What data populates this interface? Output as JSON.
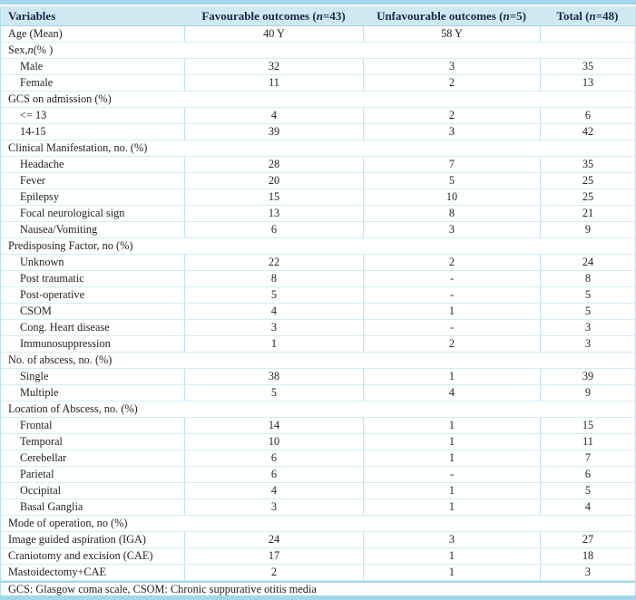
{
  "table": {
    "title_semantic": "Patient variables by outcome",
    "columns": [
      {
        "parts": [
          {
            "t": "Variables"
          }
        ]
      },
      {
        "parts": [
          {
            "t": "Favourable outcomes ("
          },
          {
            "t": "n",
            "i": true
          },
          {
            "t": "=43)"
          }
        ]
      },
      {
        "parts": [
          {
            "t": "Unfavourable outcomes ("
          },
          {
            "t": "n",
            "i": true
          },
          {
            "t": "=5)"
          }
        ]
      },
      {
        "parts": [
          {
            "t": "Total ("
          },
          {
            "t": "n",
            "i": true
          },
          {
            "t": "=48)"
          }
        ]
      }
    ],
    "rows": [
      {
        "type": "data",
        "indent": false,
        "label": [
          {
            "t": "Age (Mean)"
          }
        ],
        "values": [
          "40 Y",
          "58 Y",
          ""
        ]
      },
      {
        "type": "section",
        "label": [
          {
            "t": "Sex, "
          },
          {
            "t": "n",
            "i": true
          },
          {
            "t": " (% )"
          }
        ]
      },
      {
        "type": "data",
        "indent": true,
        "label": [
          {
            "t": "Male"
          }
        ],
        "values": [
          "32",
          "3",
          "35"
        ]
      },
      {
        "type": "data",
        "indent": true,
        "label": [
          {
            "t": "Female"
          }
        ],
        "values": [
          "11",
          "2",
          "13"
        ]
      },
      {
        "type": "section",
        "label": [
          {
            "t": "GCS on admission (%)"
          }
        ]
      },
      {
        "type": "data",
        "indent": true,
        "label": [
          {
            "t": "<= 13"
          }
        ],
        "values": [
          "4",
          "2",
          "6"
        ]
      },
      {
        "type": "data",
        "indent": true,
        "label": [
          {
            "t": "14-15"
          }
        ],
        "values": [
          "39",
          "3",
          "42"
        ]
      },
      {
        "type": "section",
        "label": [
          {
            "t": "Clinical Manifestation, no. (%)"
          }
        ]
      },
      {
        "type": "data",
        "indent": true,
        "label": [
          {
            "t": "Headache"
          }
        ],
        "values": [
          "28",
          "7",
          "35"
        ]
      },
      {
        "type": "data",
        "indent": true,
        "label": [
          {
            "t": "Fever"
          }
        ],
        "values": [
          "20",
          "5",
          "25"
        ]
      },
      {
        "type": "data",
        "indent": true,
        "label": [
          {
            "t": "Epilepsy"
          }
        ],
        "values": [
          "15",
          "10",
          "25"
        ]
      },
      {
        "type": "data",
        "indent": true,
        "label": [
          {
            "t": "Focal neurological sign"
          }
        ],
        "values": [
          "13",
          "8",
          "21"
        ]
      },
      {
        "type": "data",
        "indent": true,
        "label": [
          {
            "t": "Nausea/Vomiting"
          }
        ],
        "values": [
          "6",
          "3",
          "9"
        ]
      },
      {
        "type": "section",
        "label": [
          {
            "t": "Predisposing Factor, no (%)"
          }
        ]
      },
      {
        "type": "data",
        "indent": true,
        "label": [
          {
            "t": "Unknown"
          }
        ],
        "values": [
          "22",
          "2",
          "24"
        ]
      },
      {
        "type": "data",
        "indent": true,
        "label": [
          {
            "t": "Post traumatic"
          }
        ],
        "values": [
          "8",
          "-",
          "8"
        ]
      },
      {
        "type": "data",
        "indent": true,
        "label": [
          {
            "t": "Post-operative"
          }
        ],
        "values": [
          "5",
          "-",
          "5"
        ]
      },
      {
        "type": "data",
        "indent": true,
        "label": [
          {
            "t": "CSOM"
          }
        ],
        "values": [
          "4",
          "1",
          "5"
        ]
      },
      {
        "type": "data",
        "indent": true,
        "label": [
          {
            "t": "Cong. Heart disease"
          }
        ],
        "values": [
          "3",
          "-",
          "3"
        ]
      },
      {
        "type": "data",
        "indent": true,
        "label": [
          {
            "t": "Immunosuppression"
          }
        ],
        "values": [
          "1",
          "2",
          "3"
        ]
      },
      {
        "type": "section",
        "label": [
          {
            "t": "No. of abscess, no. (%)"
          }
        ]
      },
      {
        "type": "data",
        "indent": true,
        "label": [
          {
            "t": "Single"
          }
        ],
        "values": [
          "38",
          "1",
          "39"
        ]
      },
      {
        "type": "data",
        "indent": true,
        "label": [
          {
            "t": "Multiple"
          }
        ],
        "values": [
          "5",
          "4",
          "9"
        ]
      },
      {
        "type": "section",
        "label": [
          {
            "t": "Location of Abscess, no. (%)"
          }
        ]
      },
      {
        "type": "data",
        "indent": true,
        "label": [
          {
            "t": "Frontal"
          }
        ],
        "values": [
          "14",
          "1",
          "15"
        ]
      },
      {
        "type": "data",
        "indent": true,
        "label": [
          {
            "t": "Temporal"
          }
        ],
        "values": [
          "10",
          "1",
          "11"
        ]
      },
      {
        "type": "data",
        "indent": true,
        "label": [
          {
            "t": "Cerebellar"
          }
        ],
        "values": [
          "6",
          "1",
          "7"
        ]
      },
      {
        "type": "data",
        "indent": true,
        "label": [
          {
            "t": "Parietal"
          }
        ],
        "values": [
          "6",
          "-",
          "6"
        ]
      },
      {
        "type": "data",
        "indent": true,
        "label": [
          {
            "t": "Occipital"
          }
        ],
        "values": [
          "4",
          "1",
          "5"
        ]
      },
      {
        "type": "data",
        "indent": true,
        "label": [
          {
            "t": "Basal Ganglia"
          }
        ],
        "values": [
          "3",
          "1",
          "4"
        ]
      },
      {
        "type": "section",
        "label": [
          {
            "t": "Mode of operation, no (%)"
          }
        ]
      },
      {
        "type": "data",
        "indent": false,
        "label": [
          {
            "t": "Image guided aspiration (IGA)"
          }
        ],
        "values": [
          "24",
          "3",
          "27"
        ]
      },
      {
        "type": "data",
        "indent": false,
        "label": [
          {
            "t": "Craniotomy and excision (CAE)"
          }
        ],
        "values": [
          "17",
          "1",
          "18"
        ]
      },
      {
        "type": "data",
        "indent": false,
        "label": [
          {
            "t": "Mastoidectomy+CAE"
          }
        ],
        "values": [
          "2",
          "1",
          "3"
        ]
      }
    ],
    "footnote": "GCS: Glasgow coma scale, CSOM: Chronic suppurative otitis media"
  },
  "colors": {
    "band": "#a2d8e9",
    "header_bg": "#cfe9f3",
    "header_text": "#1e2547",
    "row_divider": "#d4ecf6",
    "column_divider": "#bfe2ef",
    "body_text": "#262321"
  }
}
